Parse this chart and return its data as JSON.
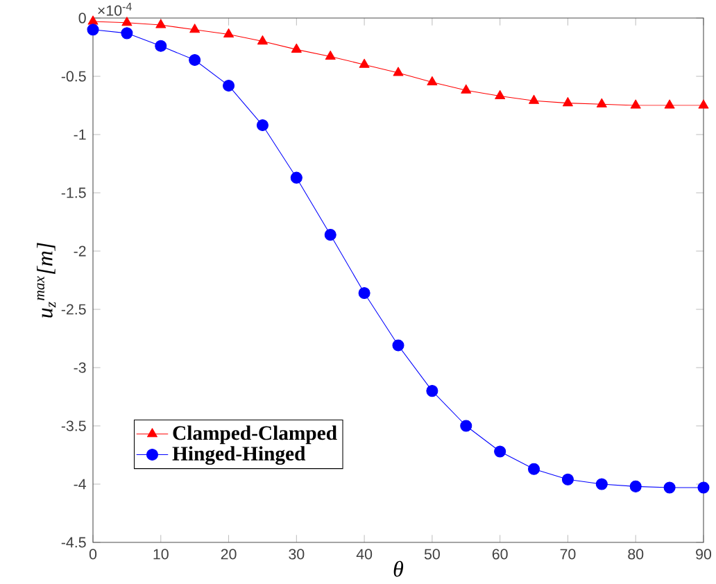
{
  "chart_data": {
    "type": "line",
    "xlabel": "θ",
    "ylabel": "u$_{z}$$^{max}$[m]",
    "annotations": [
      "×10$^{-4}$"
    ],
    "x": [
      0,
      5,
      10,
      15,
      20,
      25,
      30,
      35,
      40,
      45,
      50,
      55,
      60,
      65,
      70,
      75,
      80,
      85,
      90
    ],
    "series": [
      {
        "name": "Clamped-Clamped",
        "color": "#ff0000",
        "marker": "triangle",
        "values": [
          -0.03,
          -0.04,
          -0.06,
          -0.1,
          -0.14,
          -0.2,
          -0.27,
          -0.33,
          -0.4,
          -0.47,
          -0.55,
          -0.62,
          -0.67,
          -0.71,
          -0.73,
          -0.74,
          -0.75,
          -0.75,
          -0.75
        ]
      },
      {
        "name": "Hinged-Hinged",
        "color": "#0000ff",
        "marker": "circle",
        "values": [
          -0.1,
          -0.13,
          -0.24,
          -0.36,
          -0.58,
          -0.92,
          -1.37,
          -1.86,
          -2.36,
          -2.81,
          -3.2,
          -3.5,
          -3.72,
          -3.87,
          -3.96,
          -4.0,
          -4.02,
          -4.03,
          -4.03
        ]
      }
    ],
    "xlim": [
      0,
      90
    ],
    "xticks": [
      0,
      10,
      20,
      30,
      40,
      50,
      60,
      70,
      80,
      90
    ],
    "ylim": [
      -4.5,
      0
    ],
    "yticks": [
      -4.5,
      -4,
      -3.5,
      -3,
      -2.5,
      -2,
      -1.5,
      -1,
      -0.5,
      0
    ],
    "grid": false,
    "legend": "bottom left",
    "line_style": "solid"
  }
}
